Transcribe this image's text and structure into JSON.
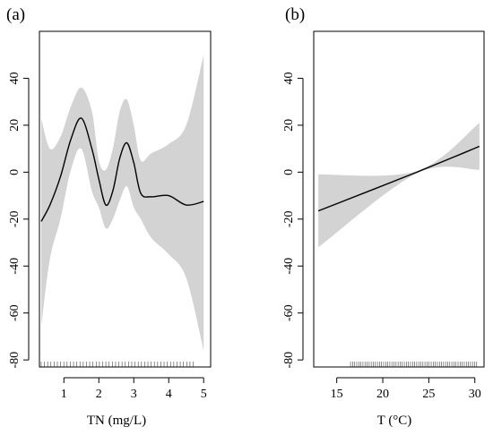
{
  "colors": {
    "band": "#d3d3d3",
    "line": "#000000",
    "frame": "#000000"
  },
  "chart_data": [
    {
      "panel_label": "(a)",
      "type": "line",
      "xlabel": "TN (mg/L)",
      "ylabel": "",
      "xlim": [
        0.3,
        5.2
      ],
      "ylim": [
        -83,
        60
      ],
      "x_ticks": [
        1,
        2,
        3,
        4,
        5
      ],
      "y_ticks": [
        -80,
        -60,
        -40,
        -20,
        0,
        20,
        40
      ],
      "series": [
        {
          "x": [
            0.35,
            0.6,
            0.9,
            1.2,
            1.5,
            1.8,
            2.0,
            2.2,
            2.4,
            2.6,
            2.8,
            3.0,
            3.2,
            3.5,
            4.0,
            4.5,
            5.0
          ],
          "y": [
            -21,
            -14,
            -2,
            14,
            23,
            10,
            -3,
            -14,
            -8,
            6,
            12.5,
            4,
            -9,
            -10.5,
            -10,
            -14,
            -12.5
          ],
          "upper": [
            23,
            10,
            15,
            28,
            36,
            26,
            5,
            1,
            10,
            26,
            31,
            20,
            5,
            8,
            12,
            20,
            50
          ],
          "lower": [
            -66,
            -37,
            -20,
            1,
            10,
            -8,
            -15,
            -24,
            -20,
            -12,
            -6,
            -15,
            -20,
            -28,
            -35,
            -45,
            -76
          ]
        }
      ],
      "rug_x_min": 0.35,
      "rug_x_max": 4.7
    },
    {
      "panel_label": "(b)",
      "type": "line",
      "xlabel": "T (°C)",
      "ylabel": "",
      "xlim": [
        12.5,
        31
      ],
      "ylim": [
        -83,
        60
      ],
      "x_ticks": [
        15,
        20,
        25,
        30
      ],
      "y_ticks": [
        -80,
        -60,
        -40,
        -20,
        0,
        20,
        40
      ],
      "series": [
        {
          "x": [
            13.0,
            23.7,
            30.5
          ],
          "y": [
            -16.5,
            0,
            11
          ],
          "upper": [
            -1,
            0.5,
            21
          ],
          "lower": [
            -32,
            -0.5,
            1
          ]
        }
      ],
      "rug_x_min": 16.5,
      "rug_x_max": 30.2
    }
  ]
}
